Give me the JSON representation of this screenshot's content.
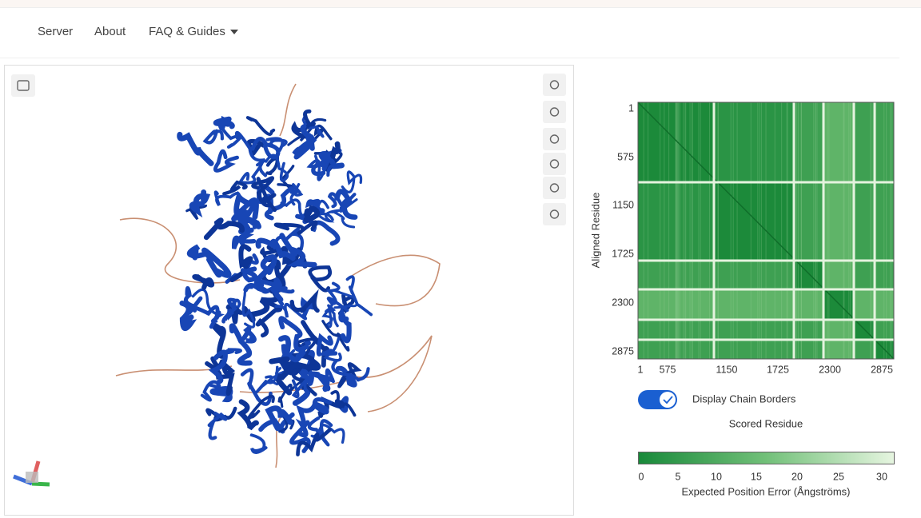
{
  "nav": {
    "items": [
      "Server",
      "About",
      "FAQ & Guides"
    ]
  },
  "pae_plot": {
    "y_axis_label": "Aligned Residue",
    "yticks": [
      1,
      575,
      1150,
      1725,
      2300,
      2875
    ],
    "xticks": [
      1,
      575,
      1150,
      1725,
      2300,
      2875
    ],
    "toggle_label": "Display Chain Borders",
    "x_axis_label": "Scored Residue",
    "colorbar_ticks": [
      0,
      5,
      10,
      15,
      20,
      25,
      30
    ],
    "colorbar_label": "Expected Position Error (Ångströms)"
  }
}
